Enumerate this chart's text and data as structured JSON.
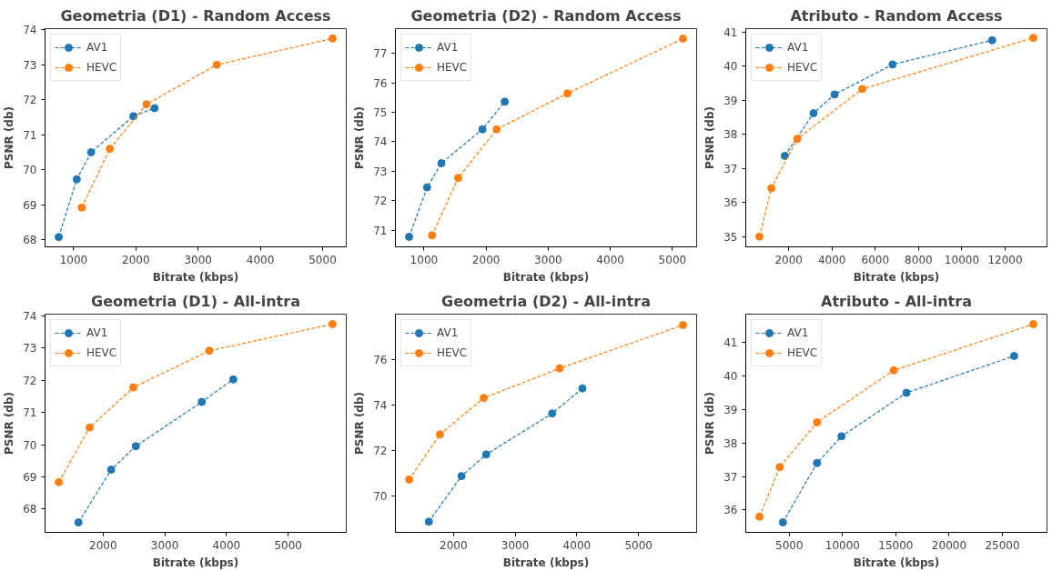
{
  "chart_data": [
    {
      "type": "line",
      "title": "Geometria (D1) - Random Access",
      "xlabel": "Bitrate (kbps)",
      "ylabel": "PSNR (db)",
      "xlim": [
        540,
        5380
      ],
      "ylim": [
        67.8,
        74.03
      ],
      "xticks": [
        1000,
        2000,
        3000,
        4000,
        5000
      ],
      "yticks": [
        68,
        69,
        70,
        71,
        72,
        73,
        74
      ],
      "grid": false,
      "legend": "top left",
      "marker": "circle",
      "line_style": "dashed",
      "series": [
        {
          "name": "AV1",
          "color": "#1f77b4",
          "x": [
            760,
            1050,
            1280,
            1960,
            2300
          ],
          "values": [
            68.08,
            69.73,
            70.5,
            71.53,
            71.76
          ]
        },
        {
          "name": "HEVC",
          "color": "#ff7f0e",
          "x": [
            1130,
            1580,
            2170,
            3300,
            5160
          ],
          "values": [
            68.92,
            70.6,
            71.87,
            73.0,
            73.75
          ]
        }
      ]
    },
    {
      "type": "line",
      "title": "Geometria (D2) - Random Access",
      "xlabel": "Bitrate (kbps)",
      "ylabel": "PSNR (db)",
      "xlim": [
        540,
        5390
      ],
      "ylim": [
        70.43,
        77.84
      ],
      "xticks": [
        1000,
        2000,
        3000,
        4000,
        5000
      ],
      "yticks": [
        71,
        72,
        73,
        74,
        75,
        76,
        77
      ],
      "grid": false,
      "legend": "top left",
      "marker": "circle",
      "line_style": "dashed",
      "series": [
        {
          "name": "AV1",
          "color": "#1f77b4",
          "x": [
            760,
            1050,
            1280,
            1940,
            2300
          ],
          "values": [
            70.77,
            72.45,
            73.27,
            74.42,
            75.36
          ]
        },
        {
          "name": "HEVC",
          "color": "#ff7f0e",
          "x": [
            1130,
            1550,
            2170,
            3310,
            5170
          ],
          "values": [
            70.82,
            72.77,
            74.42,
            75.64,
            77.5
          ]
        }
      ]
    },
    {
      "type": "line",
      "title": "Atributo - Random Access",
      "xlabel": "Bitrate (kbps)",
      "ylabel": "PSNR (db)",
      "xlim": [
        18,
        13932
      ],
      "ylim": [
        34.7,
        41.1
      ],
      "xticks": [
        2000,
        4000,
        6000,
        8000,
        10000,
        12000
      ],
      "yticks": [
        35,
        36,
        37,
        38,
        39,
        40,
        41
      ],
      "grid": false,
      "legend": "top left",
      "marker": "circle",
      "line_style": "dashed",
      "series": [
        {
          "name": "AV1",
          "color": "#1f77b4",
          "x": [
            1820,
            3150,
            4120,
            6800,
            11400
          ],
          "values": [
            37.37,
            38.62,
            39.17,
            40.05,
            40.76
          ]
        },
        {
          "name": "HEVC",
          "color": "#ff7f0e",
          "x": [
            650,
            1200,
            2400,
            5400,
            13300
          ],
          "values": [
            35.0,
            36.42,
            37.87,
            39.33,
            40.83
          ]
        }
      ]
    },
    {
      "type": "line",
      "title": "Geometria (D1) - All-intra",
      "xlabel": "Bitrate (kbps)",
      "ylabel": "PSNR (db)",
      "xlim": [
        1058,
        5942
      ],
      "ylim": [
        67.27,
        74.06
      ],
      "xticks": [
        2000,
        3000,
        4000,
        5000
      ],
      "yticks": [
        68,
        69,
        70,
        71,
        72,
        73,
        74
      ],
      "grid": false,
      "legend": "top left",
      "marker": "circle",
      "line_style": "dashed",
      "series": [
        {
          "name": "AV1",
          "color": "#1f77b4",
          "x": [
            1600,
            2130,
            2530,
            3600,
            4110
          ],
          "values": [
            67.58,
            69.22,
            69.95,
            71.33,
            72.03
          ]
        },
        {
          "name": "HEVC",
          "color": "#ff7f0e",
          "x": [
            1280,
            1780,
            2490,
            3720,
            5720
          ],
          "values": [
            68.83,
            70.53,
            71.78,
            72.92,
            73.75
          ]
        }
      ]
    },
    {
      "type": "line",
      "title": "Geometria (D2) - All-intra",
      "xlabel": "Bitrate (kbps)",
      "ylabel": "PSNR (db)",
      "xlim": [
        1058,
        5942
      ],
      "ylim": [
        68.4,
        77.98
      ],
      "xticks": [
        2000,
        3000,
        4000,
        5000
      ],
      "yticks": [
        70,
        72,
        74,
        76
      ],
      "grid": false,
      "legend": "top left",
      "marker": "circle",
      "line_style": "dashed",
      "series": [
        {
          "name": "AV1",
          "color": "#1f77b4",
          "x": [
            1600,
            2130,
            2530,
            3600,
            4090
          ],
          "values": [
            68.87,
            70.87,
            71.82,
            73.62,
            74.72
          ]
        },
        {
          "name": "HEVC",
          "color": "#ff7f0e",
          "x": [
            1280,
            1780,
            2490,
            3720,
            5720
          ],
          "values": [
            70.72,
            72.7,
            74.3,
            75.6,
            77.5
          ]
        }
      ]
    },
    {
      "type": "line",
      "title": "Atributo - All-intra",
      "xlabel": "Bitrate (kbps)",
      "ylabel": "PSNR (db)",
      "xlim": [
        915,
        29185
      ],
      "ylim": [
        35.33,
        41.85
      ],
      "xticks": [
        5000,
        10000,
        15000,
        20000,
        25000
      ],
      "yticks": [
        36,
        37,
        38,
        39,
        40,
        41
      ],
      "grid": false,
      "legend": "top left",
      "marker": "circle",
      "line_style": "dashed",
      "series": [
        {
          "name": "AV1",
          "color": "#1f77b4",
          "x": [
            4400,
            7600,
            9900,
            16000,
            26100
          ],
          "values": [
            35.63,
            37.4,
            38.2,
            39.5,
            40.6
          ]
        },
        {
          "name": "HEVC",
          "color": "#ff7f0e",
          "x": [
            2200,
            4100,
            7600,
            14800,
            27900
          ],
          "values": [
            35.8,
            37.28,
            38.62,
            40.17,
            41.55
          ]
        }
      ]
    }
  ]
}
